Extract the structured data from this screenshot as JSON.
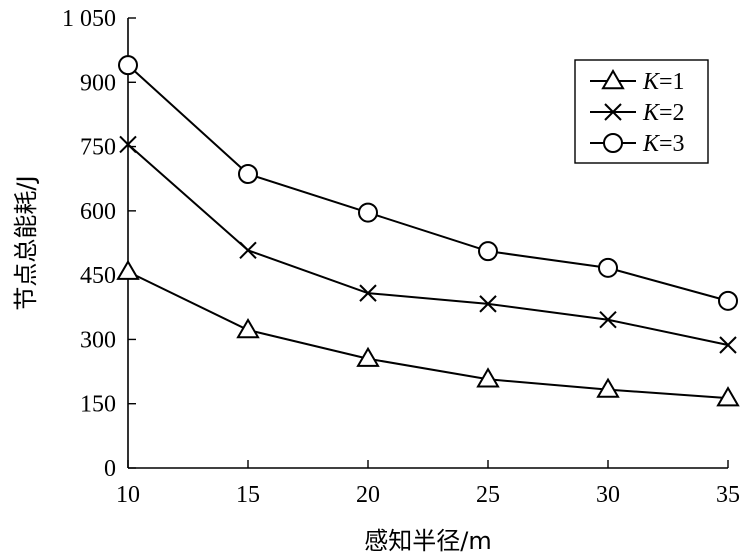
{
  "chart_data": {
    "type": "line",
    "title": "",
    "xlabel": "感知半径/m",
    "ylabel": "节点总能耗/J",
    "x": [
      10,
      15,
      20,
      25,
      30,
      35
    ],
    "xlim": [
      10,
      35
    ],
    "xticks": [
      "10",
      "15",
      "20",
      "25",
      "30",
      "35"
    ],
    "ylim": [
      0,
      1050
    ],
    "yticks": [
      {
        "value": 0,
        "label": "0"
      },
      {
        "value": 150,
        "label": "150"
      },
      {
        "value": 300,
        "label": "300"
      },
      {
        "value": 450,
        "label": "450"
      },
      {
        "value": 600,
        "label": "600"
      },
      {
        "value": 750,
        "label": "750"
      },
      {
        "value": 900,
        "label": "900"
      },
      {
        "value": 1050,
        "label": "1 050"
      }
    ],
    "grid": false,
    "legend_position": "top-right",
    "series": [
      {
        "name_var": "K",
        "name_eq": "=1",
        "marker": "triangle",
        "values": [
          458,
          322,
          255,
          207,
          183,
          163
        ]
      },
      {
        "name_var": "K",
        "name_eq": "=2",
        "marker": "x",
        "values": [
          755,
          508,
          408,
          383,
          346,
          287
        ]
      },
      {
        "name_var": "K",
        "name_eq": "=3",
        "marker": "circle",
        "values": [
          940,
          686,
          596,
          506,
          467,
          390
        ]
      }
    ]
  }
}
